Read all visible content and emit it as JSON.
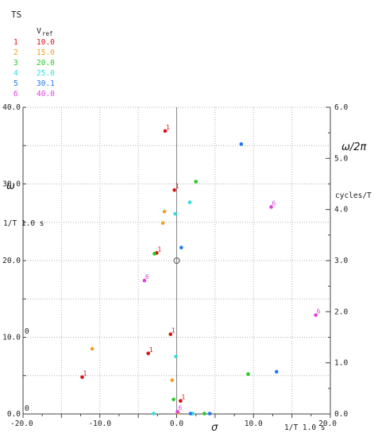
{
  "chart_data": {
    "type": "scatter",
    "title": "TS",
    "legend_header": "V",
    "legend_header_sub": "ref",
    "legend_placement": "top-left",
    "grid": true,
    "xlim": [
      -20.0,
      20.0
    ],
    "ylim": [
      0.0,
      40.0
    ],
    "y2lim": [
      0.0,
      6.0
    ],
    "xlabel": "σ",
    "xlabel_right": "1/T  1.0 s",
    "ylabel": "ω",
    "ylabel_units": "1/T  1.0 s",
    "y2label": "ω/2π",
    "y2label_units": "cycles/T",
    "x_ticks": [
      "-20.0",
      "-10.0",
      "0.0",
      "10.0",
      "20.0"
    ],
    "x_tick_values": [
      -20,
      -10,
      0,
      10,
      20
    ],
    "y_ticks": [
      "0.0",
      "10.0",
      "20.0",
      "30.0",
      "40.0"
    ],
    "y_tick_values": [
      0,
      10,
      20,
      30,
      40
    ],
    "y2_ticks": [
      "0.0",
      "1.0",
      "2.0",
      "3.0",
      "4.0",
      "5.0",
      "6.0"
    ],
    "y2_tick_values": [
      0,
      1,
      2,
      3,
      4,
      5,
      6
    ],
    "left_edge_labels": [
      "0",
      "0"
    ],
    "reference_marker": {
      "x": 0.0,
      "y": 20.0
    },
    "series": [
      {
        "index": "1",
        "name": "10.0",
        "color": "#dd1111",
        "labeled": true,
        "points": [
          [
            -1.5,
            36.9
          ],
          [
            -0.3,
            29.2
          ],
          [
            -2.6,
            21.0
          ],
          [
            -0.8,
            10.4
          ],
          [
            -3.7,
            7.9
          ],
          [
            -12.3,
            4.8
          ],
          [
            0.5,
            1.7
          ]
        ]
      },
      {
        "index": "2",
        "name": "15.0",
        "color": "#f0a020",
        "labeled": false,
        "points": [
          [
            -1.6,
            26.4
          ],
          [
            -1.8,
            24.9
          ],
          [
            -11.0,
            8.5
          ],
          [
            -0.6,
            4.4
          ],
          [
            0.2,
            0.15
          ]
        ]
      },
      {
        "index": "3",
        "name": "20.0",
        "color": "#22cc22",
        "labeled": false,
        "points": [
          [
            2.5,
            30.3
          ],
          [
            -2.9,
            20.9
          ],
          [
            9.3,
            5.2
          ],
          [
            -0.4,
            1.9
          ],
          [
            3.6,
            0.05
          ]
        ]
      },
      {
        "index": "4",
        "name": "25.0",
        "color": "#33dddd",
        "labeled": false,
        "points": [
          [
            1.7,
            27.6
          ],
          [
            -0.2,
            26.1
          ],
          [
            -0.1,
            7.5
          ],
          [
            -3.0,
            0.05
          ],
          [
            2.1,
            0.05
          ]
        ]
      },
      {
        "index": "5",
        "name": "30.1",
        "color": "#2277ee",
        "labeled": false,
        "points": [
          [
            8.4,
            35.2
          ],
          [
            0.6,
            21.7
          ],
          [
            13.0,
            5.5
          ],
          [
            1.8,
            0.05
          ],
          [
            4.3,
            0.05
          ]
        ]
      },
      {
        "index": "6",
        "name": "40.0",
        "color": "#e040e0",
        "labeled": true,
        "points": [
          [
            12.3,
            27.0
          ],
          [
            -4.2,
            17.4
          ],
          [
            18.1,
            12.9
          ],
          [
            0.1,
            0.3
          ]
        ]
      }
    ]
  }
}
